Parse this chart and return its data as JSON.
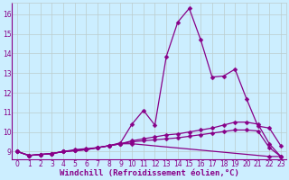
{
  "xlabel": "Windchill (Refroidissement éolien,°C)",
  "bg_color": "#cceeff",
  "line_color": "#880088",
  "grid_color": "#bbcccc",
  "xlim": [
    -0.5,
    23.5
  ],
  "ylim": [
    8.6,
    16.6
  ],
  "xticks": [
    0,
    1,
    2,
    3,
    4,
    5,
    6,
    7,
    8,
    9,
    10,
    11,
    12,
    13,
    14,
    15,
    16,
    17,
    18,
    19,
    20,
    21,
    22,
    23
  ],
  "yticks": [
    9,
    10,
    11,
    12,
    13,
    14,
    15,
    16
  ],
  "line1_x": [
    0,
    1,
    2,
    3,
    4,
    5,
    6,
    7,
    8,
    9,
    10,
    11,
    12,
    13,
    14,
    15,
    16,
    17,
    18,
    19,
    20,
    21,
    22,
    23
  ],
  "line1_y": [
    9.0,
    8.8,
    8.85,
    8.9,
    9.0,
    9.1,
    9.15,
    9.2,
    9.3,
    9.45,
    10.4,
    11.1,
    10.35,
    13.85,
    15.6,
    16.3,
    14.7,
    12.8,
    12.85,
    13.2,
    11.7,
    10.3,
    10.2,
    9.3
  ],
  "line2_x": [
    0,
    1,
    2,
    3,
    4,
    5,
    6,
    7,
    8,
    9,
    10,
    11,
    12,
    13,
    14,
    15,
    16,
    17,
    18,
    19,
    20,
    21,
    22,
    23
  ],
  "line2_y": [
    9.0,
    8.8,
    8.85,
    8.9,
    9.0,
    9.05,
    9.1,
    9.2,
    9.3,
    9.4,
    9.55,
    9.65,
    9.75,
    9.85,
    9.9,
    10.0,
    10.1,
    10.2,
    10.35,
    10.5,
    10.5,
    10.4,
    9.4,
    8.75
  ],
  "line3_x": [
    0,
    1,
    2,
    3,
    4,
    5,
    6,
    7,
    8,
    9,
    10,
    11,
    12,
    13,
    14,
    15,
    16,
    17,
    18,
    19,
    20,
    21,
    22,
    23
  ],
  "line3_y": [
    9.0,
    8.8,
    8.85,
    8.9,
    9.0,
    9.05,
    9.1,
    9.2,
    9.3,
    9.4,
    9.5,
    9.55,
    9.6,
    9.65,
    9.7,
    9.78,
    9.86,
    9.94,
    10.02,
    10.1,
    10.1,
    10.05,
    9.2,
    8.75
  ],
  "line4_x": [
    0,
    1,
    2,
    3,
    4,
    5,
    6,
    7,
    8,
    9,
    10,
    22,
    23
  ],
  "line4_y": [
    9.0,
    8.8,
    8.85,
    8.9,
    9.0,
    9.05,
    9.1,
    9.2,
    9.3,
    9.4,
    9.4,
    8.75,
    8.75
  ],
  "markersize": 2.5,
  "linewidth": 0.9,
  "xlabel_fontsize": 6.5,
  "tick_fontsize": 5.5,
  "tick_color": "#880088",
  "label_color": "#880088"
}
